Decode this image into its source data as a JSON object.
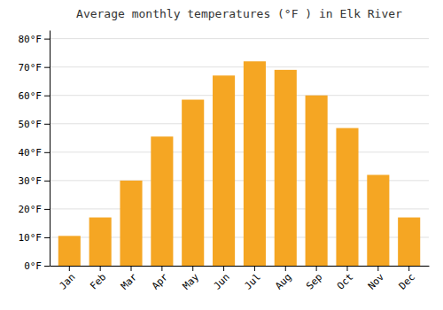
{
  "chart_data": {
    "type": "bar",
    "title": "Average monthly temperatures (°F ) in Elk River",
    "categories": [
      "Jan",
      "Feb",
      "Mar",
      "Apr",
      "May",
      "Jun",
      "Jul",
      "Aug",
      "Sep",
      "Oct",
      "Nov",
      "Dec"
    ],
    "values": [
      10.5,
      17,
      30,
      45.5,
      58.5,
      67,
      72,
      69,
      60,
      48.5,
      32,
      17
    ],
    "color": "#F5A623",
    "ylim": [
      0,
      83
    ],
    "yticks": [
      {
        "value": 0,
        "label": "0°F"
      },
      {
        "value": 10,
        "label": "10°F"
      },
      {
        "value": 20,
        "label": "20°F"
      },
      {
        "value": 30,
        "label": "30°F"
      },
      {
        "value": 40,
        "label": "40°F"
      },
      {
        "value": 50,
        "label": "50°F"
      },
      {
        "value": 60,
        "label": "60°F"
      },
      {
        "value": 70,
        "label": "70°F"
      },
      {
        "value": 80,
        "label": "80°F"
      }
    ],
    "grid": true
  }
}
